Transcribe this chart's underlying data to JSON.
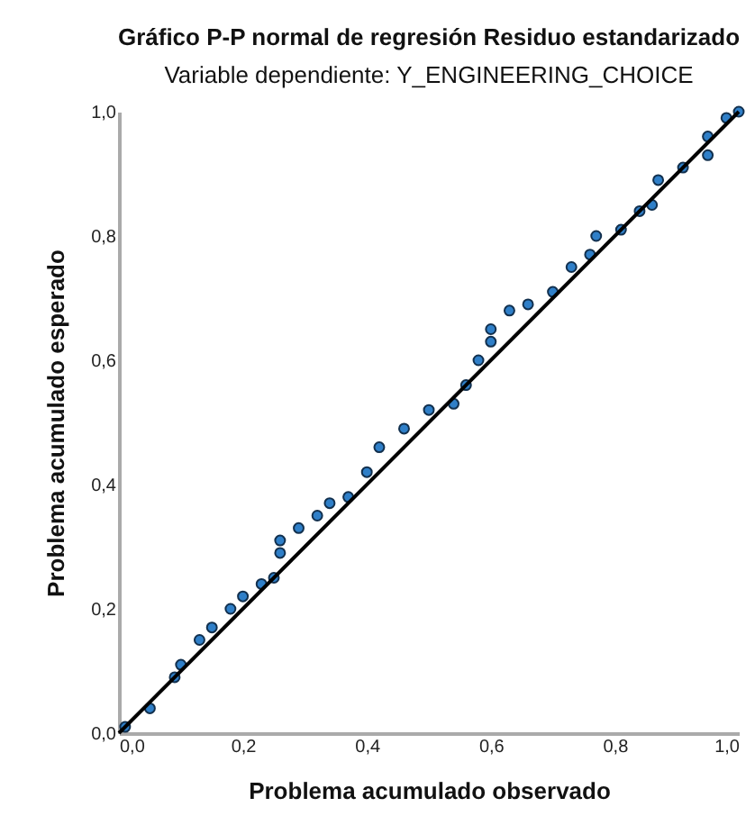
{
  "chart_data": {
    "type": "scatter",
    "title": "Gráfico P-P normal de regresión Residuo estandarizado",
    "subtitle": "Variable dependiente: Y_ENGINEERING_CHOICE",
    "xlabel": "Problema acumulado observado",
    "ylabel": "Problema acumulado esperado",
    "xlim": [
      0,
      1
    ],
    "ylim": [
      0,
      1
    ],
    "xticks": [
      {
        "value": 0,
        "label": "0,0"
      },
      {
        "value": 0.2,
        "label": "0,2"
      },
      {
        "value": 0.4,
        "label": "0,4"
      },
      {
        "value": 0.6,
        "label": "0,6"
      },
      {
        "value": 0.8,
        "label": "0,8"
      },
      {
        "value": 1,
        "label": "1,0"
      }
    ],
    "yticks": [
      {
        "value": 0,
        "label": "0,0"
      },
      {
        "value": 0.2,
        "label": "0,2"
      },
      {
        "value": 0.4,
        "label": "0,4"
      },
      {
        "value": 0.6,
        "label": "0,6"
      },
      {
        "value": 0.8,
        "label": "0,8"
      },
      {
        "value": 1,
        "label": "1,0"
      }
    ],
    "grid": false,
    "marker": "circle",
    "series": [
      {
        "color": "#2f7fc8",
        "x": [
          0.01,
          0.05,
          0.09,
          0.1,
          0.13,
          0.15,
          0.18,
          0.2,
          0.23,
          0.25,
          0.26,
          0.26,
          0.29,
          0.32,
          0.34,
          0.37,
          0.4,
          0.42,
          0.46,
          0.5,
          0.54,
          0.56,
          0.58,
          0.6,
          0.6,
          0.63,
          0.66,
          0.7,
          0.73,
          0.76,
          0.77,
          0.81,
          0.84,
          0.86,
          0.87,
          0.91,
          0.95,
          0.95,
          0.98,
          1.0
        ],
        "values": [
          0.01,
          0.04,
          0.09,
          0.11,
          0.15,
          0.17,
          0.2,
          0.22,
          0.24,
          0.25,
          0.29,
          0.31,
          0.33,
          0.35,
          0.37,
          0.38,
          0.42,
          0.46,
          0.49,
          0.52,
          0.53,
          0.56,
          0.6,
          0.63,
          0.65,
          0.68,
          0.69,
          0.71,
          0.75,
          0.77,
          0.8,
          0.81,
          0.84,
          0.85,
          0.89,
          0.91,
          0.93,
          0.96,
          0.99,
          1.0
        ]
      },
      {
        "type": "line",
        "color": "#000000",
        "marker": "none",
        "x": [
          0,
          1
        ],
        "values": [
          0,
          1
        ]
      }
    ]
  }
}
